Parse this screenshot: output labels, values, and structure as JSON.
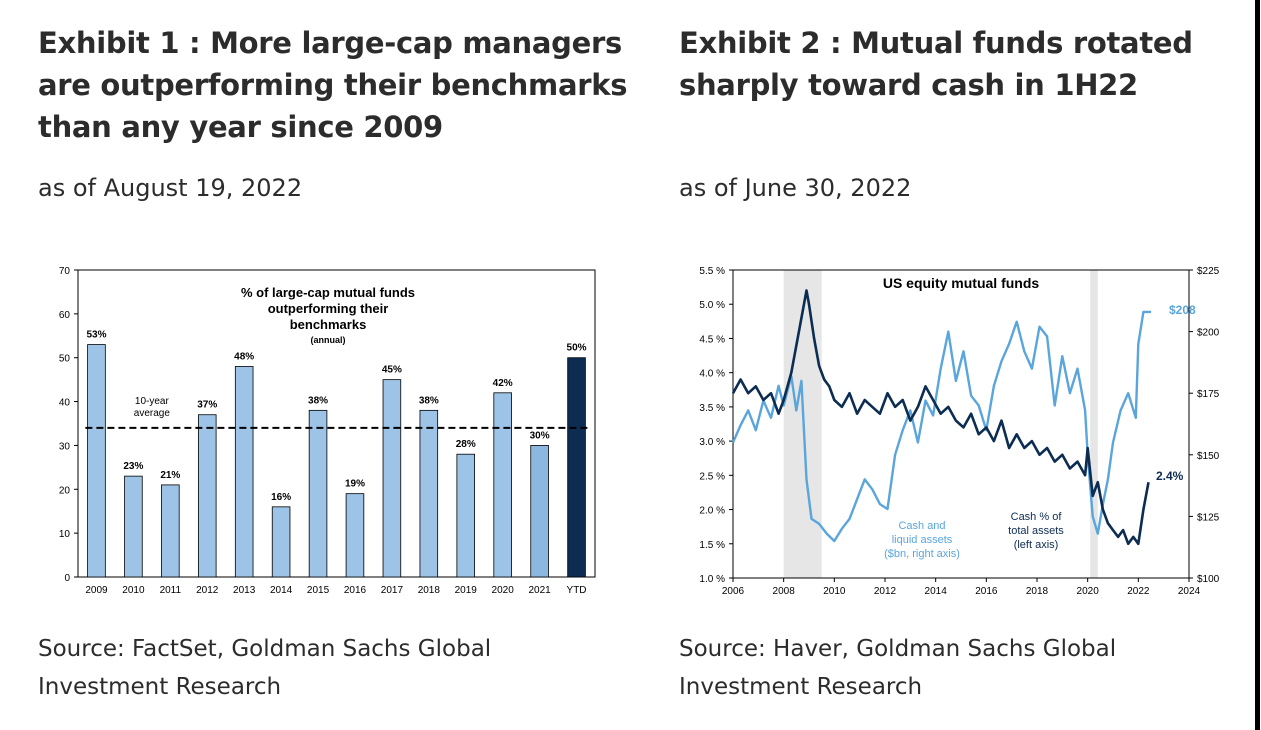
{
  "exhibit1": {
    "title_lines": [
      "Exhibit 1 : More large-cap managers",
      "are outperforming their benchmarks",
      "than any year since 2009"
    ],
    "subtitle": "as of August 19, 2022",
    "source_lines": [
      "Source: FactSet, Goldman Sachs Global",
      "Investment Research"
    ]
  },
  "exhibit2": {
    "title_lines": [
      "Exhibit 2 : Mutual funds rotated",
      "sharply toward cash in 1H22"
    ],
    "subtitle": "as of June 30, 2022",
    "source_lines": [
      "Source: Haver, Goldman Sachs Global",
      "Investment Research"
    ]
  },
  "chart_data": [
    {
      "type": "bar",
      "title_lines": [
        "% of large-cap mutual funds",
        "outperforming their",
        "benchmarks"
      ],
      "title_note": "(annual)",
      "categories": [
        "2009",
        "2010",
        "2011",
        "2012",
        "2013",
        "2014",
        "2015",
        "2016",
        "2017",
        "2018",
        "2019",
        "2020",
        "2021",
        "YTD"
      ],
      "values": [
        53,
        23,
        21,
        37,
        48,
        16,
        38,
        19,
        45,
        38,
        28,
        42,
        30,
        50
      ],
      "value_labels": [
        "53%",
        "23%",
        "21%",
        "37%",
        "48%",
        "16%",
        "38%",
        "19%",
        "45%",
        "38%",
        "28%",
        "42%",
        "30%",
        "50%"
      ],
      "bar_colors": [
        "#9dc3e6",
        "#9dc3e6",
        "#9dc3e6",
        "#9dc3e6",
        "#9dc3e6",
        "#9dc3e6",
        "#9dc3e6",
        "#9dc3e6",
        "#9dc3e6",
        "#9dc3e6",
        "#9dc3e6",
        "#9dc3e6",
        "#8bb8e0",
        "#0c2c52"
      ],
      "ylim": [
        0,
        70
      ],
      "yticks": [
        0,
        10,
        20,
        30,
        40,
        50,
        60,
        70
      ],
      "reference_line": {
        "value": 34,
        "label_lines": [
          "10-year",
          "average"
        ]
      },
      "xlabel": "",
      "ylabel": ""
    },
    {
      "type": "line",
      "title": "US equity mutual funds",
      "xlim": [
        2006,
        2024
      ],
      "xticks": [
        2006,
        2008,
        2010,
        2012,
        2014,
        2016,
        2018,
        2020,
        2022,
        2024
      ],
      "left_axis": {
        "min": 1.0,
        "max": 5.5,
        "ticks": [
          "1.0 %",
          "1.5 %",
          "2.0 %",
          "2.5 %",
          "3.0 %",
          "3.5 %",
          "4.0 %",
          "4.5 %",
          "5.0 %",
          "5.5 %"
        ]
      },
      "right_axis": {
        "min": 100,
        "max": 225,
        "ticks": [
          "$100",
          "$125",
          "$150",
          "$175",
          "$200",
          "$225"
        ]
      },
      "shaded_periods": [
        [
          2008.0,
          2009.5
        ],
        [
          2020.1,
          2020.4
        ]
      ],
      "series": [
        {
          "name": "Cash % of total assets (left axis)",
          "label_lines": [
            "Cash % of",
            "total assets",
            "(left axis)"
          ],
          "axis": "left",
          "color": "#0c2c52",
          "end_label": "2.4%",
          "x": [
            2006.0,
            2006.3,
            2006.6,
            2006.9,
            2007.2,
            2007.5,
            2007.8,
            2008.0,
            2008.3,
            2008.6,
            2008.9,
            2009.0,
            2009.2,
            2009.4,
            2009.6,
            2009.8,
            2010.0,
            2010.3,
            2010.6,
            2010.9,
            2011.2,
            2011.5,
            2011.8,
            2012.1,
            2012.4,
            2012.7,
            2013.0,
            2013.3,
            2013.6,
            2013.9,
            2014.2,
            2014.5,
            2014.8,
            2015.1,
            2015.4,
            2015.7,
            2016.0,
            2016.3,
            2016.6,
            2016.9,
            2017.2,
            2017.5,
            2017.8,
            2018.1,
            2018.4,
            2018.7,
            2019.0,
            2019.3,
            2019.6,
            2019.9,
            2020.0,
            2020.2,
            2020.4,
            2020.6,
            2020.8,
            2021.0,
            2021.2,
            2021.4,
            2021.6,
            2021.8,
            2022.0,
            2022.2,
            2022.4
          ],
          "y": [
            3.7,
            3.9,
            3.7,
            3.8,
            3.6,
            3.7,
            3.4,
            3.6,
            4.0,
            4.6,
            5.2,
            5.0,
            4.5,
            4.1,
            3.9,
            3.8,
            3.6,
            3.5,
            3.7,
            3.4,
            3.6,
            3.5,
            3.4,
            3.7,
            3.5,
            3.6,
            3.3,
            3.5,
            3.8,
            3.6,
            3.4,
            3.5,
            3.3,
            3.2,
            3.4,
            3.1,
            3.2,
            3.0,
            3.3,
            2.9,
            3.1,
            2.9,
            3.0,
            2.8,
            2.9,
            2.7,
            2.8,
            2.6,
            2.7,
            2.5,
            2.9,
            2.2,
            2.4,
            2.0,
            1.8,
            1.7,
            1.6,
            1.7,
            1.5,
            1.6,
            1.5,
            2.0,
            2.4
          ]
        },
        {
          "name": "Cash and liquid assets ($bn, right axis)",
          "label_lines": [
            "Cash and",
            "liquid assets",
            "($bn, right axis)"
          ],
          "axis": "right",
          "color": "#5aa5dc",
          "end_label": "$208",
          "x": [
            2006.0,
            2006.3,
            2006.6,
            2006.9,
            2007.2,
            2007.5,
            2007.8,
            2008.0,
            2008.3,
            2008.5,
            2008.7,
            2008.9,
            2009.1,
            2009.4,
            2009.7,
            2010.0,
            2010.3,
            2010.6,
            2010.9,
            2011.2,
            2011.5,
            2011.8,
            2012.1,
            2012.4,
            2012.7,
            2013.0,
            2013.3,
            2013.6,
            2013.9,
            2014.2,
            2014.5,
            2014.8,
            2015.1,
            2015.4,
            2015.7,
            2016.0,
            2016.3,
            2016.6,
            2016.9,
            2017.2,
            2017.5,
            2017.8,
            2018.1,
            2018.4,
            2018.7,
            2019.0,
            2019.3,
            2019.6,
            2019.9,
            2020.0,
            2020.2,
            2020.4,
            2020.6,
            2020.8,
            2021.0,
            2021.3,
            2021.6,
            2021.9,
            2022.0,
            2022.2,
            2022.5
          ],
          "y": [
            155,
            162,
            168,
            160,
            172,
            165,
            178,
            170,
            182,
            168,
            180,
            140,
            124,
            122,
            118,
            115,
            120,
            124,
            132,
            140,
            136,
            130,
            128,
            150,
            160,
            168,
            155,
            172,
            166,
            185,
            200,
            180,
            192,
            174,
            170,
            160,
            178,
            188,
            195,
            204,
            192,
            185,
            202,
            198,
            170,
            190,
            175,
            185,
            168,
            150,
            125,
            118,
            130,
            140,
            155,
            168,
            175,
            165,
            195,
            208,
            208
          ]
        }
      ]
    }
  ]
}
